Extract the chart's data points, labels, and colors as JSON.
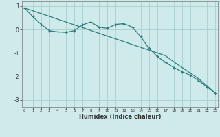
{
  "line1_x": [
    0,
    1,
    2,
    3,
    4,
    5,
    6,
    7,
    8,
    9,
    10,
    11,
    12,
    13,
    14,
    15,
    16,
    17,
    18,
    19,
    20,
    21,
    22,
    23
  ],
  "line1_y": [
    0.92,
    0.8,
    0.68,
    0.56,
    0.44,
    0.32,
    0.2,
    0.08,
    -0.04,
    -0.16,
    -0.28,
    -0.4,
    -0.52,
    -0.64,
    -0.76,
    -0.88,
    -1.0,
    -1.12,
    -1.38,
    -1.62,
    -1.86,
    -2.1,
    -2.4,
    -2.72
  ],
  "line2_x": [
    0,
    1,
    2,
    3,
    4,
    5,
    6,
    7,
    8,
    9,
    10,
    11,
    12,
    13,
    14,
    15,
    16,
    17,
    18,
    19,
    20,
    21,
    22,
    23
  ],
  "line2_y": [
    0.92,
    0.55,
    0.22,
    -0.05,
    -0.1,
    -0.12,
    -0.05,
    0.2,
    0.32,
    0.1,
    0.05,
    0.22,
    0.25,
    0.1,
    -0.3,
    -0.8,
    -1.15,
    -1.4,
    -1.62,
    -1.8,
    -1.95,
    -2.18,
    -2.45,
    -2.72
  ],
  "bg_color": "#ceeaea",
  "grid_color": "#aacece",
  "line_color": "#2d7d7d",
  "xlabel": "Humidex (Indice chaleur)",
  "ylim": [
    -3.3,
    1.2
  ],
  "xlim": [
    -0.3,
    23.3
  ],
  "yticks": [
    -3,
    -2,
    -1,
    0,
    1
  ],
  "xticks": [
    0,
    1,
    2,
    3,
    4,
    5,
    6,
    7,
    8,
    9,
    10,
    11,
    12,
    13,
    14,
    15,
    16,
    17,
    18,
    19,
    20,
    21,
    22,
    23
  ]
}
